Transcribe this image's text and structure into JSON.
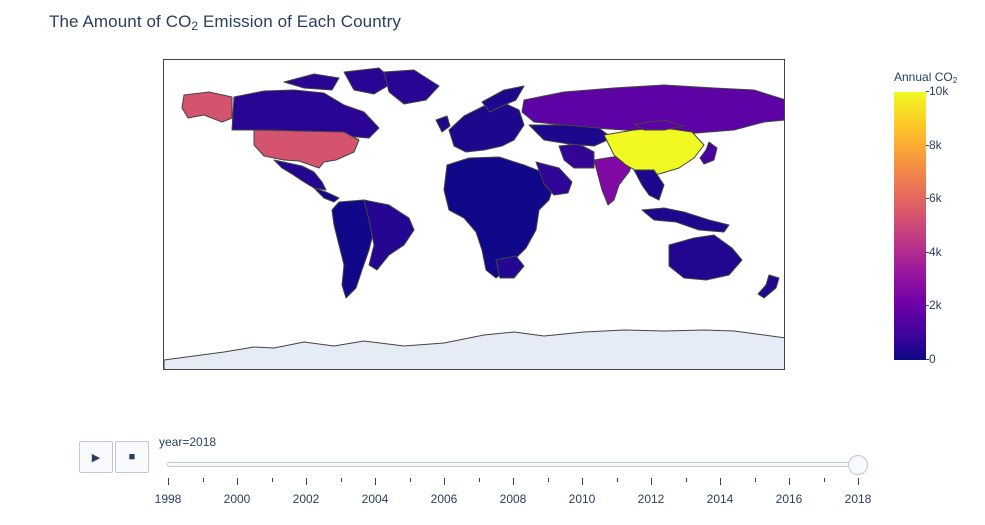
{
  "title": {
    "main": "The Amount of CO",
    "sub": "2",
    "rest": " Emission of Each Country"
  },
  "colorbar": {
    "title_main": "Annual CO",
    "title_sub": "2",
    "ticks": [
      "0",
      "2k",
      "4k",
      "6k",
      "8k",
      "10k"
    ],
    "colorscale": [
      "#0d0887",
      "#46039f",
      "#7201a8",
      "#9c179e",
      "#bd3786",
      "#d8576b",
      "#ed7953",
      "#fb9f3a",
      "#fdca26",
      "#f0f921"
    ]
  },
  "slider": {
    "label": "year=2018",
    "years": [
      "1998",
      "2000",
      "2002",
      "2004",
      "2006",
      "2008",
      "2010",
      "2012",
      "2014",
      "2016",
      "2018"
    ],
    "current_value": 2018
  },
  "controls": {
    "play_icon": "play-icon",
    "stop_icon": "stop-icon",
    "play_glyph": "▶",
    "stop_glyph": "■"
  },
  "chart_data": {
    "type": "choropleth",
    "frame": "year=2018",
    "colorbar_range": [
      0,
      10000
    ],
    "approx_values": [
      {
        "region": "China",
        "value": 10000
      },
      {
        "region": "United States",
        "value": 5400
      },
      {
        "region": "India",
        "value": 2600
      },
      {
        "region": "Russia",
        "value": 1700
      },
      {
        "region": "Japan",
        "value": 1150
      },
      {
        "region": "Iran",
        "value": 750
      },
      {
        "region": "Saudi Arabia",
        "value": 650
      },
      {
        "region": "Canada",
        "value": 570
      },
      {
        "region": "Australia",
        "value": 400
      },
      {
        "region": "Brazil",
        "value": 460
      },
      {
        "region": "Mexico",
        "value": 470
      },
      {
        "region": "South Africa",
        "value": 460
      },
      {
        "region": "Europe",
        "value": 300
      },
      {
        "region": "Africa (rest)",
        "value": 50
      },
      {
        "region": "South America (rest)",
        "value": 80
      },
      {
        "region": "Southeast Asia",
        "value": 300
      }
    ]
  }
}
